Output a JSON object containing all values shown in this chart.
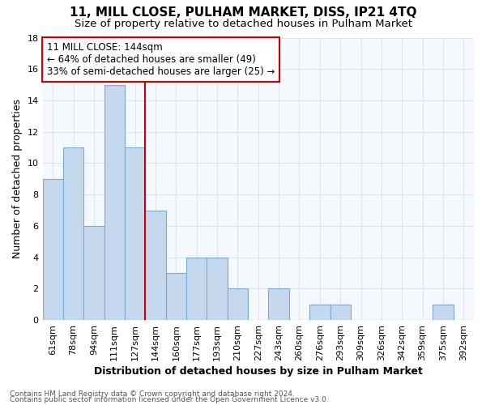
{
  "title": "11, MILL CLOSE, PULHAM MARKET, DISS, IP21 4TQ",
  "subtitle": "Size of property relative to detached houses in Pulham Market",
  "xlabel": "Distribution of detached houses by size in Pulham Market",
  "ylabel": "Number of detached properties",
  "categories": [
    "61sqm",
    "78sqm",
    "94sqm",
    "111sqm",
    "127sqm",
    "144sqm",
    "160sqm",
    "177sqm",
    "193sqm",
    "210sqm",
    "227sqm",
    "243sqm",
    "260sqm",
    "276sqm",
    "293sqm",
    "309sqm",
    "326sqm",
    "342sqm",
    "359sqm",
    "375sqm",
    "392sqm"
  ],
  "values": [
    9,
    11,
    6,
    15,
    11,
    7,
    3,
    4,
    4,
    2,
    0,
    2,
    0,
    1,
    1,
    0,
    0,
    0,
    0,
    1,
    0
  ],
  "bar_color": "#c5d8ee",
  "bar_edge_color": "#7aadd4",
  "highlight_index": 5,
  "highlight_line_color": "#cc0000",
  "ylim": [
    0,
    18
  ],
  "yticks": [
    0,
    2,
    4,
    6,
    8,
    10,
    12,
    14,
    16,
    18
  ],
  "annotation_text": "11 MILL CLOSE: 144sqm\n← 64% of detached houses are smaller (49)\n33% of semi-detached houses are larger (25) →",
  "annotation_box_facecolor": "#ffffff",
  "annotation_box_edgecolor": "#cc0000",
  "footer_line1": "Contains HM Land Registry data © Crown copyright and database right 2024.",
  "footer_line2": "Contains public sector information licensed under the Open Government Licence v3.0.",
  "background_color": "#ffffff",
  "plot_bg_color": "#f5f8fc",
  "grid_color": "#dce6f0",
  "title_fontsize": 11,
  "subtitle_fontsize": 9.5,
  "axis_label_fontsize": 9,
  "tick_fontsize": 8,
  "footer_fontsize": 6.5,
  "annotation_fontsize": 8.5
}
